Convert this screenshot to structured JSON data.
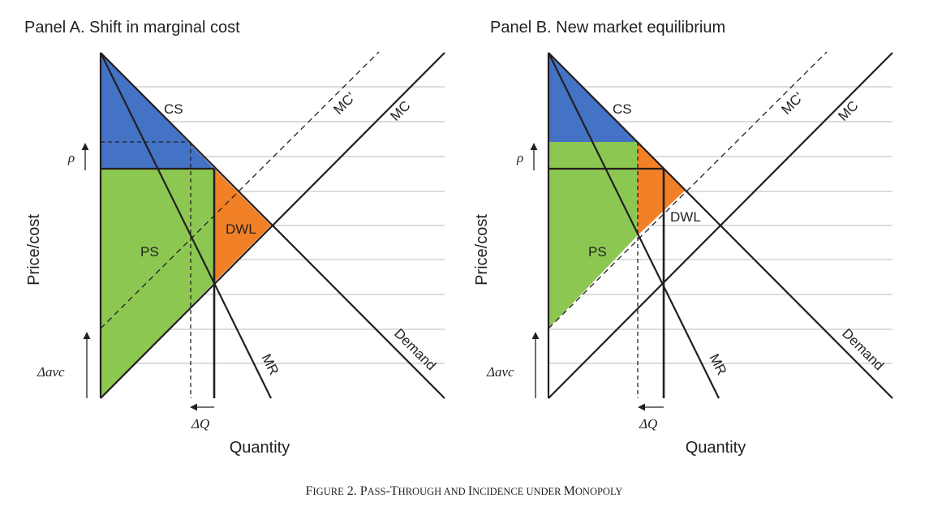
{
  "figure": {
    "caption_lead": "F",
    "caption_rest": "IGURE 2. P",
    "caption_words": [
      "F",
      "IGURE",
      " 2. ",
      "P",
      "ASS",
      "-",
      "T",
      "HROUGH",
      " AND ",
      "I",
      "NCIDENCE",
      " UNDER ",
      "M",
      "ONOPOLY"
    ]
  },
  "panels": [
    {
      "title": "Panel A. Shift in marginal cost",
      "ylabel": "Price/cost",
      "xlabel": "Quantity",
      "labels": {
        "cs": "CS",
        "ps": "PS",
        "dwl": "DWL",
        "mc_new": "MC'",
        "mc": "MC",
        "mr": "MR",
        "demand": "Demand",
        "rho": "ρ",
        "delta_avc": "Δavc",
        "delta_q": "ΔQ"
      }
    },
    {
      "title": "Panel B. New market equilibrium",
      "ylabel": "Price/cost",
      "xlabel": "Quantity",
      "labels": {
        "cs": "CS",
        "ps": "PS",
        "dwl": "DWL",
        "mc_new": "MC'",
        "mc": "MC",
        "mr": "MR",
        "demand": "Demand",
        "rho": "ρ",
        "delta_avc": "Δavc",
        "delta_q": "ΔQ"
      }
    }
  ],
  "colors": {
    "cs": "#4472c4",
    "ps": "#8cc751",
    "dwl": "#f28026",
    "line": "#231f20",
    "grid": "#b8b8b8"
  }
}
